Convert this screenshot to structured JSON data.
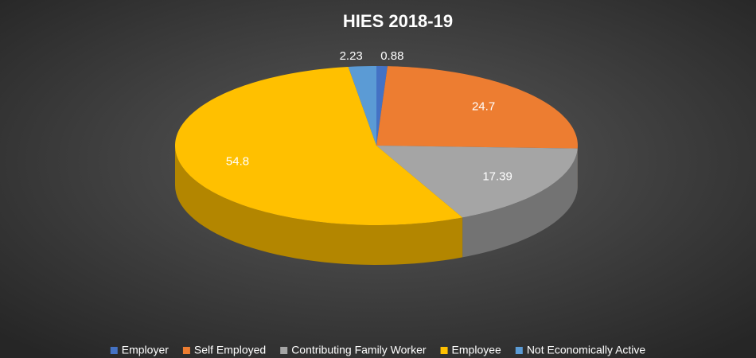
{
  "chart_data": {
    "type": "pie",
    "title": "HIES 2018-19",
    "categories": [
      "Employer",
      "Self Employed",
      "Contributing Family Worker",
      "Employee",
      "Not Economically Active"
    ],
    "values": [
      0.88,
      24.7,
      17.39,
      54.8,
      2.23
    ],
    "colors": [
      "#4472c4",
      "#ed7d31",
      "#a5a5a5",
      "#ffc000",
      "#5b9bd5"
    ],
    "legend": "bottom"
  }
}
